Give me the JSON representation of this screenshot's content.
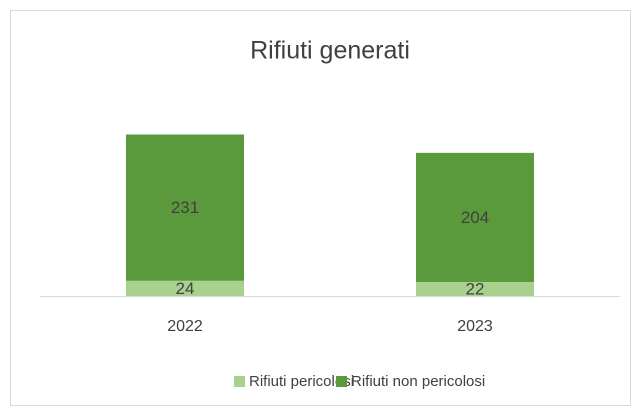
{
  "chart_data": {
    "type": "stacked_bar",
    "title": "Rifiuti generati",
    "categories": [
      "2022",
      "2023"
    ],
    "series": [
      {
        "name": "Rifiuti pericolosi",
        "color": "#a9d18e",
        "values": [
          24,
          22
        ]
      },
      {
        "name": "Rifiuti non pericolosi",
        "color": "#5b9a3c",
        "values": [
          231,
          204
        ]
      }
    ],
    "ylim": [
      0,
      300
    ],
    "legend": "bottom"
  }
}
